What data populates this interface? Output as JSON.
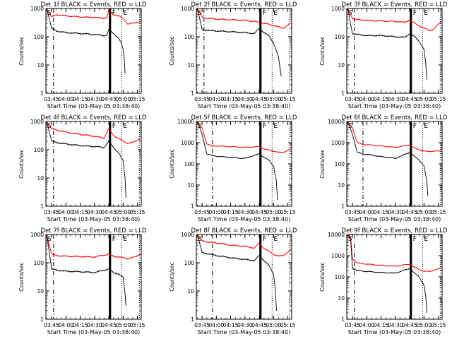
{
  "chart_data": [
    {
      "type": "line",
      "title": "Det 1f BLACK = Events, RED = LLD",
      "xlabel": "Start Time (03-May-05 03:38:40)",
      "ylabel": "Counts/sec",
      "yscale": "log",
      "ylim": [
        1,
        1000
      ],
      "xlim": [
        "03:39",
        "05:19"
      ],
      "xticks": [
        "03:45",
        "04:00",
        "04:15",
        "04:30",
        "04:45",
        "05:00",
        "05:15"
      ],
      "yticks": [
        "1",
        "10",
        "100",
        "1000"
      ],
      "markers": [
        "S",
        "F",
        "E"
      ],
      "series": [
        {
          "name": "LLD",
          "color": "#ff0000",
          "x": [
            "03:40",
            "03:45",
            "03:50",
            "04:00",
            "04:15",
            "04:30",
            "04:40",
            "04:43",
            "04:45",
            "04:50",
            "04:55",
            "05:00",
            "05:05",
            "05:10",
            "05:18"
          ],
          "y": [
            1000,
            500,
            600,
            550,
            500,
            480,
            450,
            480,
            900,
            600,
            550,
            450,
            280,
            300,
            350
          ]
        },
        {
          "name": "Events",
          "color": "#000000",
          "x": [
            "03:40",
            "03:45",
            "03:50",
            "04:00",
            "04:15",
            "04:30",
            "04:40",
            "04:43",
            "04:45",
            "04:50",
            "04:55",
            "04:58",
            "05:00",
            "05:01",
            "05:02"
          ],
          "y": [
            1000,
            200,
            160,
            140,
            130,
            120,
            110,
            115,
            180,
            130,
            90,
            60,
            35,
            20,
            5
          ]
        }
      ]
    },
    {
      "type": "line",
      "title": "Det 2f BLACK = Events, RED = LLD",
      "xlabel": "Start Time (03-May-05 03:38:40)",
      "ylabel": "Counts/sec",
      "yscale": "log",
      "ylim": [
        1,
        1000
      ],
      "xlim": [
        "03:39",
        "05:19"
      ],
      "xticks": [
        "03:45",
        "04:00",
        "04:15",
        "04:30",
        "04:45",
        "05:00",
        "05:15"
      ],
      "yticks": [
        "1",
        "10",
        "100",
        "1000"
      ],
      "markers": [
        "S",
        "F",
        "E"
      ],
      "series": [
        {
          "name": "LLD",
          "color": "#ff0000",
          "x": [
            "03:40",
            "03:45",
            "03:50",
            "04:00",
            "04:15",
            "04:30",
            "04:40",
            "04:45",
            "04:50",
            "05:00",
            "05:10",
            "05:18"
          ],
          "y": [
            1000,
            500,
            450,
            420,
            400,
            380,
            350,
            320,
            300,
            250,
            200,
            300
          ]
        },
        {
          "name": "Events",
          "color": "#000000",
          "x": [
            "03:40",
            "03:45",
            "03:50",
            "04:00",
            "04:15",
            "04:30",
            "04:40",
            "04:45",
            "04:50",
            "04:55",
            "05:00",
            "05:05",
            "05:08"
          ],
          "y": [
            1000,
            180,
            170,
            160,
            150,
            140,
            130,
            200,
            140,
            110,
            60,
            20,
            4
          ]
        }
      ]
    },
    {
      "type": "line",
      "title": "Det 3f BLACK = Events, RED = LLD",
      "xlabel": "Start Time (03-May-05 03:38:40)",
      "ylabel": "Counts/sec",
      "yscale": "log",
      "ylim": [
        1,
        1000
      ],
      "xlim": [
        "03:39",
        "05:19"
      ],
      "xticks": [
        "03:45",
        "04:00",
        "04:15",
        "04:30",
        "04:45",
        "05:00",
        "05:15"
      ],
      "yticks": [
        "1",
        "10",
        "100",
        "1000"
      ],
      "markers": [
        "S",
        "F",
        "E"
      ],
      "series": [
        {
          "name": "LLD",
          "color": "#ff0000",
          "x": [
            "03:40",
            "03:45",
            "03:50",
            "04:00",
            "04:15",
            "04:30",
            "04:40",
            "04:45",
            "04:50",
            "05:00",
            "05:05",
            "05:10",
            "05:18"
          ],
          "y": [
            1000,
            450,
            400,
            380,
            360,
            350,
            320,
            400,
            300,
            200,
            170,
            180,
            350
          ]
        },
        {
          "name": "Events",
          "color": "#000000",
          "x": [
            "03:40",
            "03:45",
            "03:50",
            "04:00",
            "04:15",
            "04:30",
            "04:40",
            "04:45",
            "04:50",
            "04:55",
            "05:00",
            "05:02",
            "05:03"
          ],
          "y": [
            1000,
            130,
            120,
            110,
            110,
            100,
            95,
            130,
            100,
            70,
            35,
            10,
            3
          ]
        }
      ]
    },
    {
      "type": "line",
      "title": "Det 4f BLACK = Events, RED = LLD",
      "xlabel": "Start Time (03-May-05 03:38:40)",
      "ylabel": "Counts/sec",
      "yscale": "log",
      "ylim": [
        1,
        1000
      ],
      "xlim": [
        "03:39",
        "05:19"
      ],
      "xticks": [
        "03:45",
        "04:00",
        "04:15",
        "04:30",
        "04:45",
        "05:00",
        "05:15"
      ],
      "yticks": [
        "1",
        "10",
        "100",
        "1000"
      ],
      "markers": [
        "S",
        "F",
        "E"
      ],
      "series": [
        {
          "name": "LLD",
          "color": "#ff0000",
          "x": [
            "03:40",
            "03:45",
            "03:50",
            "04:00",
            "04:15",
            "04:30",
            "04:40",
            "04:45",
            "04:50",
            "05:00",
            "05:05",
            "05:10",
            "05:18"
          ],
          "y": [
            1000,
            550,
            500,
            420,
            350,
            300,
            260,
            550,
            320,
            200,
            170,
            180,
            250
          ]
        },
        {
          "name": "Events",
          "color": "#000000",
          "x": [
            "03:40",
            "03:45",
            "03:50",
            "04:00",
            "04:15",
            "04:30",
            "04:40",
            "04:45",
            "04:50",
            "04:55",
            "05:00",
            "05:02",
            "05:03"
          ],
          "y": [
            1000,
            200,
            180,
            160,
            140,
            130,
            120,
            200,
            120,
            80,
            40,
            10,
            2
          ]
        }
      ]
    },
    {
      "type": "line",
      "title": "Det 5f BLACK = Events, RED = LLD",
      "xlabel": "Start Time (03-May-05 03:38:40)",
      "ylabel": "Counts/sec",
      "yscale": "log",
      "ylim": [
        1,
        10000
      ],
      "xlim": [
        "03:39",
        "05:19"
      ],
      "xticks": [
        "03:45",
        "04:00",
        "04:15",
        "04:30",
        "04:45",
        "05:00",
        "05:15"
      ],
      "yticks": [
        "1",
        "10",
        "100",
        "1000",
        "10000"
      ],
      "markers": [
        "S",
        "F",
        "E"
      ],
      "series": [
        {
          "name": "LLD",
          "color": "#ff0000",
          "x": [
            "03:40",
            "03:45",
            "03:50",
            "03:55",
            "04:00",
            "04:15",
            "04:30",
            "04:45",
            "04:50",
            "05:00",
            "05:05",
            "05:10",
            "05:18"
          ],
          "y": [
            10000,
            5000,
            900,
            700,
            700,
            650,
            600,
            650,
            500,
            400,
            350,
            350,
            500
          ]
        },
        {
          "name": "Events",
          "color": "#000000",
          "x": [
            "03:40",
            "03:45",
            "03:50",
            "03:55",
            "04:00",
            "04:15",
            "04:30",
            "04:45",
            "04:50",
            "04:55",
            "05:00",
            "05:03",
            "05:04"
          ],
          "y": [
            10000,
            2500,
            300,
            250,
            230,
            200,
            180,
            300,
            200,
            150,
            80,
            15,
            2
          ]
        }
      ]
    },
    {
      "type": "line",
      "title": "Det 6f BLACK = Events, RED = LLD",
      "xlabel": "Start Time (03-May-05 03:38:40)",
      "ylabel": "Counts/sec",
      "yscale": "log",
      "ylim": [
        1,
        10000
      ],
      "xlim": [
        "03:39",
        "05:19"
      ],
      "xticks": [
        "03:45",
        "04:00",
        "04:15",
        "04:30",
        "04:45",
        "05:00",
        "05:15"
      ],
      "yticks": [
        "1",
        "10",
        "100",
        "1000",
        "10000"
      ],
      "markers": [
        "S",
        "F",
        "E"
      ],
      "series": [
        {
          "name": "LLD",
          "color": "#ff0000",
          "x": [
            "03:40",
            "03:45",
            "03:50",
            "03:55",
            "04:00",
            "04:15",
            "04:30",
            "04:45",
            "04:50",
            "05:00",
            "05:05",
            "05:10",
            "05:18"
          ],
          "y": [
            10000,
            5000,
            1000,
            850,
            800,
            700,
            600,
            800,
            550,
            400,
            380,
            400,
            400
          ]
        },
        {
          "name": "Events",
          "color": "#000000",
          "x": [
            "03:40",
            "03:45",
            "03:50",
            "03:55",
            "04:00",
            "04:15",
            "04:30",
            "04:45",
            "04:50",
            "04:55",
            "05:00",
            "05:03",
            "05:04"
          ],
          "y": [
            10000,
            2500,
            350,
            300,
            280,
            220,
            180,
            350,
            220,
            150,
            80,
            15,
            3
          ]
        }
      ]
    },
    {
      "type": "line",
      "title": "Det 7f BLACK = Events, RED = LLD",
      "xlabel": "Start Time (03-May-05 03:38:40)",
      "ylabel": "Counts/sec",
      "yscale": "log",
      "ylim": [
        1,
        1000
      ],
      "xlim": [
        "03:39",
        "05:19"
      ],
      "xticks": [
        "03:45",
        "04:00",
        "04:15",
        "04:30",
        "04:45",
        "05:00",
        "05:15"
      ],
      "yticks": [
        "1",
        "10",
        "100",
        "1000"
      ],
      "markers": [
        "S",
        "F",
        "E"
      ],
      "series": [
        {
          "name": "LLD",
          "color": "#ff0000",
          "x": [
            "03:40",
            "03:45",
            "03:50",
            "04:00",
            "04:15",
            "04:30",
            "04:45",
            "04:50",
            "05:00",
            "05:05",
            "05:10",
            "05:18"
          ],
          "y": [
            1000,
            200,
            180,
            170,
            165,
            160,
            200,
            170,
            150,
            140,
            150,
            200
          ]
        },
        {
          "name": "Events",
          "color": "#000000",
          "x": [
            "03:40",
            "03:45",
            "03:50",
            "04:00",
            "04:15",
            "04:30",
            "04:45",
            "04:50",
            "04:55",
            "05:00",
            "05:02",
            "05:03"
          ],
          "y": [
            1000,
            60,
            55,
            50,
            48,
            45,
            60,
            45,
            40,
            30,
            8,
            3
          ]
        }
      ]
    },
    {
      "type": "line",
      "title": "Det 8f BLACK = Events, RED = LLD",
      "xlabel": "Start Time (03-May-05 03:38:40)",
      "ylabel": "Counts/sec",
      "yscale": "log",
      "ylim": [
        1,
        1000
      ],
      "xlim": [
        "03:39",
        "05:19"
      ],
      "xticks": [
        "03:45",
        "04:00",
        "04:15",
        "04:30",
        "04:45",
        "05:00",
        "05:15"
      ],
      "yticks": [
        "1",
        "10",
        "100",
        "1000"
      ],
      "markers": [
        "S",
        "F",
        "E"
      ],
      "series": [
        {
          "name": "LLD",
          "color": "#ff0000",
          "x": [
            "03:40",
            "03:45",
            "03:50",
            "04:00",
            "04:15",
            "04:30",
            "04:40",
            "04:45",
            "04:50",
            "05:00",
            "05:05",
            "05:10",
            "05:18"
          ],
          "y": [
            1000,
            600,
            550,
            500,
            420,
            380,
            330,
            500,
            320,
            200,
            170,
            180,
            280
          ]
        },
        {
          "name": "Events",
          "color": "#000000",
          "x": [
            "03:40",
            "03:45",
            "03:50",
            "04:00",
            "04:15",
            "04:30",
            "04:40",
            "04:45",
            "04:50",
            "04:55",
            "05:00",
            "05:02",
            "05:03"
          ],
          "y": [
            1000,
            230,
            210,
            180,
            150,
            130,
            120,
            180,
            120,
            80,
            40,
            10,
            2
          ]
        }
      ]
    },
    {
      "type": "line",
      "title": "Det 9f BLACK = Events, RED = LLD",
      "xlabel": "Start Time (03-May-05 03:38:40)",
      "ylabel": "Counts/sec",
      "yscale": "log",
      "ylim": [
        1,
        10000
      ],
      "xlim": [
        "03:39",
        "05:19"
      ],
      "xticks": [
        "03:45",
        "04:00",
        "04:15",
        "04:30",
        "04:45",
        "05:00",
        "05:15"
      ],
      "yticks": [
        "1",
        "10",
        "100",
        "1000",
        "10000"
      ],
      "markers": [
        "S",
        "F",
        "E"
      ],
      "series": [
        {
          "name": "LLD",
          "color": "#ff0000",
          "x": [
            "03:40",
            "03:43",
            "03:45",
            "03:50",
            "04:00",
            "04:15",
            "04:30",
            "04:45",
            "04:50",
            "05:00",
            "05:05",
            "05:10",
            "05:18"
          ],
          "y": [
            10000,
            8000,
            700,
            450,
            400,
            350,
            320,
            400,
            280,
            180,
            180,
            200,
            260
          ]
        },
        {
          "name": "Events",
          "color": "#000000",
          "x": [
            "03:40",
            "03:43",
            "03:45",
            "03:50",
            "04:00",
            "04:15",
            "04:30",
            "04:45",
            "04:50",
            "04:55",
            "05:00",
            "05:02",
            "05:03"
          ],
          "y": [
            10000,
            6000,
            250,
            200,
            180,
            160,
            150,
            250,
            150,
            100,
            40,
            10,
            2
          ]
        }
      ]
    }
  ]
}
